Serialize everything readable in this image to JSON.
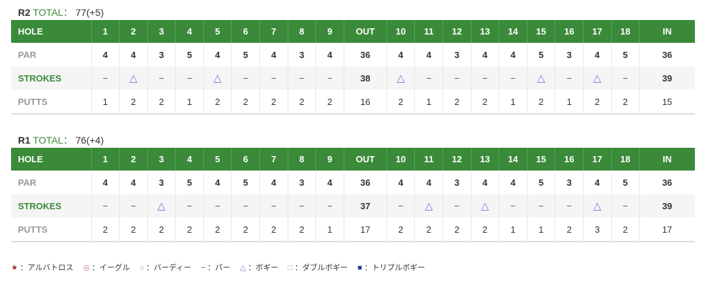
{
  "holes": [
    "1",
    "2",
    "3",
    "4",
    "5",
    "6",
    "7",
    "8",
    "9",
    "OUT",
    "10",
    "11",
    "12",
    "13",
    "14",
    "15",
    "16",
    "17",
    "18",
    "IN"
  ],
  "labels": {
    "hole": "HOLE",
    "par": "PAR",
    "strokes": "STROKES",
    "putts": "PUTTS",
    "total": "TOTAL："
  },
  "par": [
    "4",
    "4",
    "3",
    "5",
    "4",
    "5",
    "4",
    "3",
    "4",
    "36",
    "4",
    "4",
    "3",
    "4",
    "4",
    "5",
    "3",
    "4",
    "5",
    "36"
  ],
  "rounds": [
    {
      "name": "R2",
      "total": "77(+5)",
      "strokes": [
        "−",
        "△",
        "−",
        "−",
        "△",
        "−",
        "−",
        "−",
        "−",
        "38",
        "△",
        "−",
        "−",
        "−",
        "−",
        "△",
        "−",
        "△",
        "−",
        "39"
      ],
      "putts": [
        "1",
        "2",
        "2",
        "1",
        "2",
        "2",
        "2",
        "2",
        "2",
        "16",
        "2",
        "1",
        "2",
        "2",
        "1",
        "2",
        "1",
        "2",
        "2",
        "15"
      ]
    },
    {
      "name": "R1",
      "total": "76(+4)",
      "strokes": [
        "−",
        "−",
        "△",
        "−",
        "−",
        "−",
        "−",
        "−",
        "−",
        "37",
        "−",
        "△",
        "−",
        "△",
        "−",
        "−",
        "−",
        "△",
        "−",
        "39"
      ],
      "putts": [
        "2",
        "2",
        "2",
        "2",
        "2",
        "2",
        "2",
        "2",
        "1",
        "17",
        "2",
        "2",
        "2",
        "2",
        "1",
        "1",
        "2",
        "3",
        "2",
        "17"
      ]
    }
  ],
  "legend": [
    {
      "symbol": "★",
      "label": "：アルバトロス",
      "color": "#b03030"
    },
    {
      "symbol": "◎",
      "label": "：イーグル",
      "color": "#d08080"
    },
    {
      "symbol": "○",
      "label": "：バーディー",
      "color": "#d08080"
    },
    {
      "symbol": "−",
      "label": "：パー",
      "color": "#555555"
    },
    {
      "symbol": "△",
      "label": "：ボギー",
      "color": "#6f76d8"
    },
    {
      "symbol": "□",
      "label": "：ダブルボギー",
      "color": "#9aa0e0"
    },
    {
      "symbol": "■",
      "label": "：トリプルボギー",
      "color": "#2c3a9c"
    }
  ]
}
